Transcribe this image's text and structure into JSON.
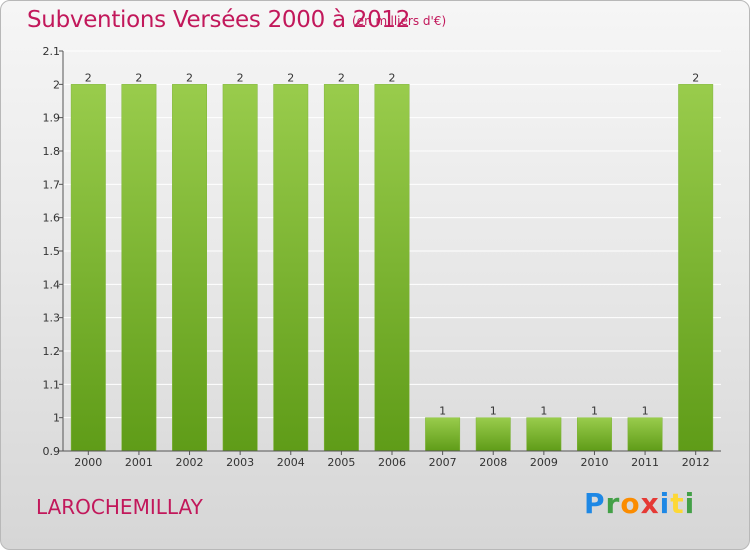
{
  "title": "Subventions Versées 2000 à 2012",
  "unit": "(en milliers d'€)",
  "place": "LAROCHEMILLAY",
  "logo": {
    "letters": [
      {
        "ch": "P",
        "color": "#1e88e5"
      },
      {
        "ch": "r",
        "color": "#43a047"
      },
      {
        "ch": "o",
        "color": "#fb8c00"
      },
      {
        "ch": "x",
        "color": "#e53935"
      },
      {
        "ch": "i",
        "color": "#1e88e5"
      },
      {
        "ch": "t",
        "color": "#fdd835"
      },
      {
        "ch": "i",
        "color": "#43a047"
      }
    ]
  },
  "chart_data": {
    "type": "bar",
    "categories": [
      "2000",
      "2001",
      "2002",
      "2003",
      "2004",
      "2005",
      "2006",
      "2007",
      "2008",
      "2009",
      "2010",
      "2011",
      "2012"
    ],
    "values": [
      2,
      2,
      2,
      2,
      2,
      2,
      2,
      1,
      1,
      1,
      1,
      1,
      2
    ],
    "data_labels": [
      "2",
      "2",
      "2",
      "2",
      "2",
      "2",
      "2",
      "1",
      "1",
      "1",
      "1",
      "1",
      "2"
    ],
    "ylim": [
      0.9,
      2.1
    ],
    "yticks": [
      0.9,
      1,
      1.1,
      1.2,
      1.3,
      1.4,
      1.5,
      1.6,
      1.7,
      1.8,
      1.9,
      2,
      2.1
    ],
    "ytick_labels": [
      "0.9",
      "1",
      "1.1",
      "1.2",
      "1.3",
      "1.4",
      "1.5",
      "1.6",
      "1.7",
      "1.8",
      "1.9",
      "2",
      "2.1"
    ],
    "grid": true,
    "colors": {
      "bar_top": "#99cc4c",
      "bar_bottom": "#5f9c18",
      "axis": "#555555",
      "grid": "#ffffff"
    }
  }
}
